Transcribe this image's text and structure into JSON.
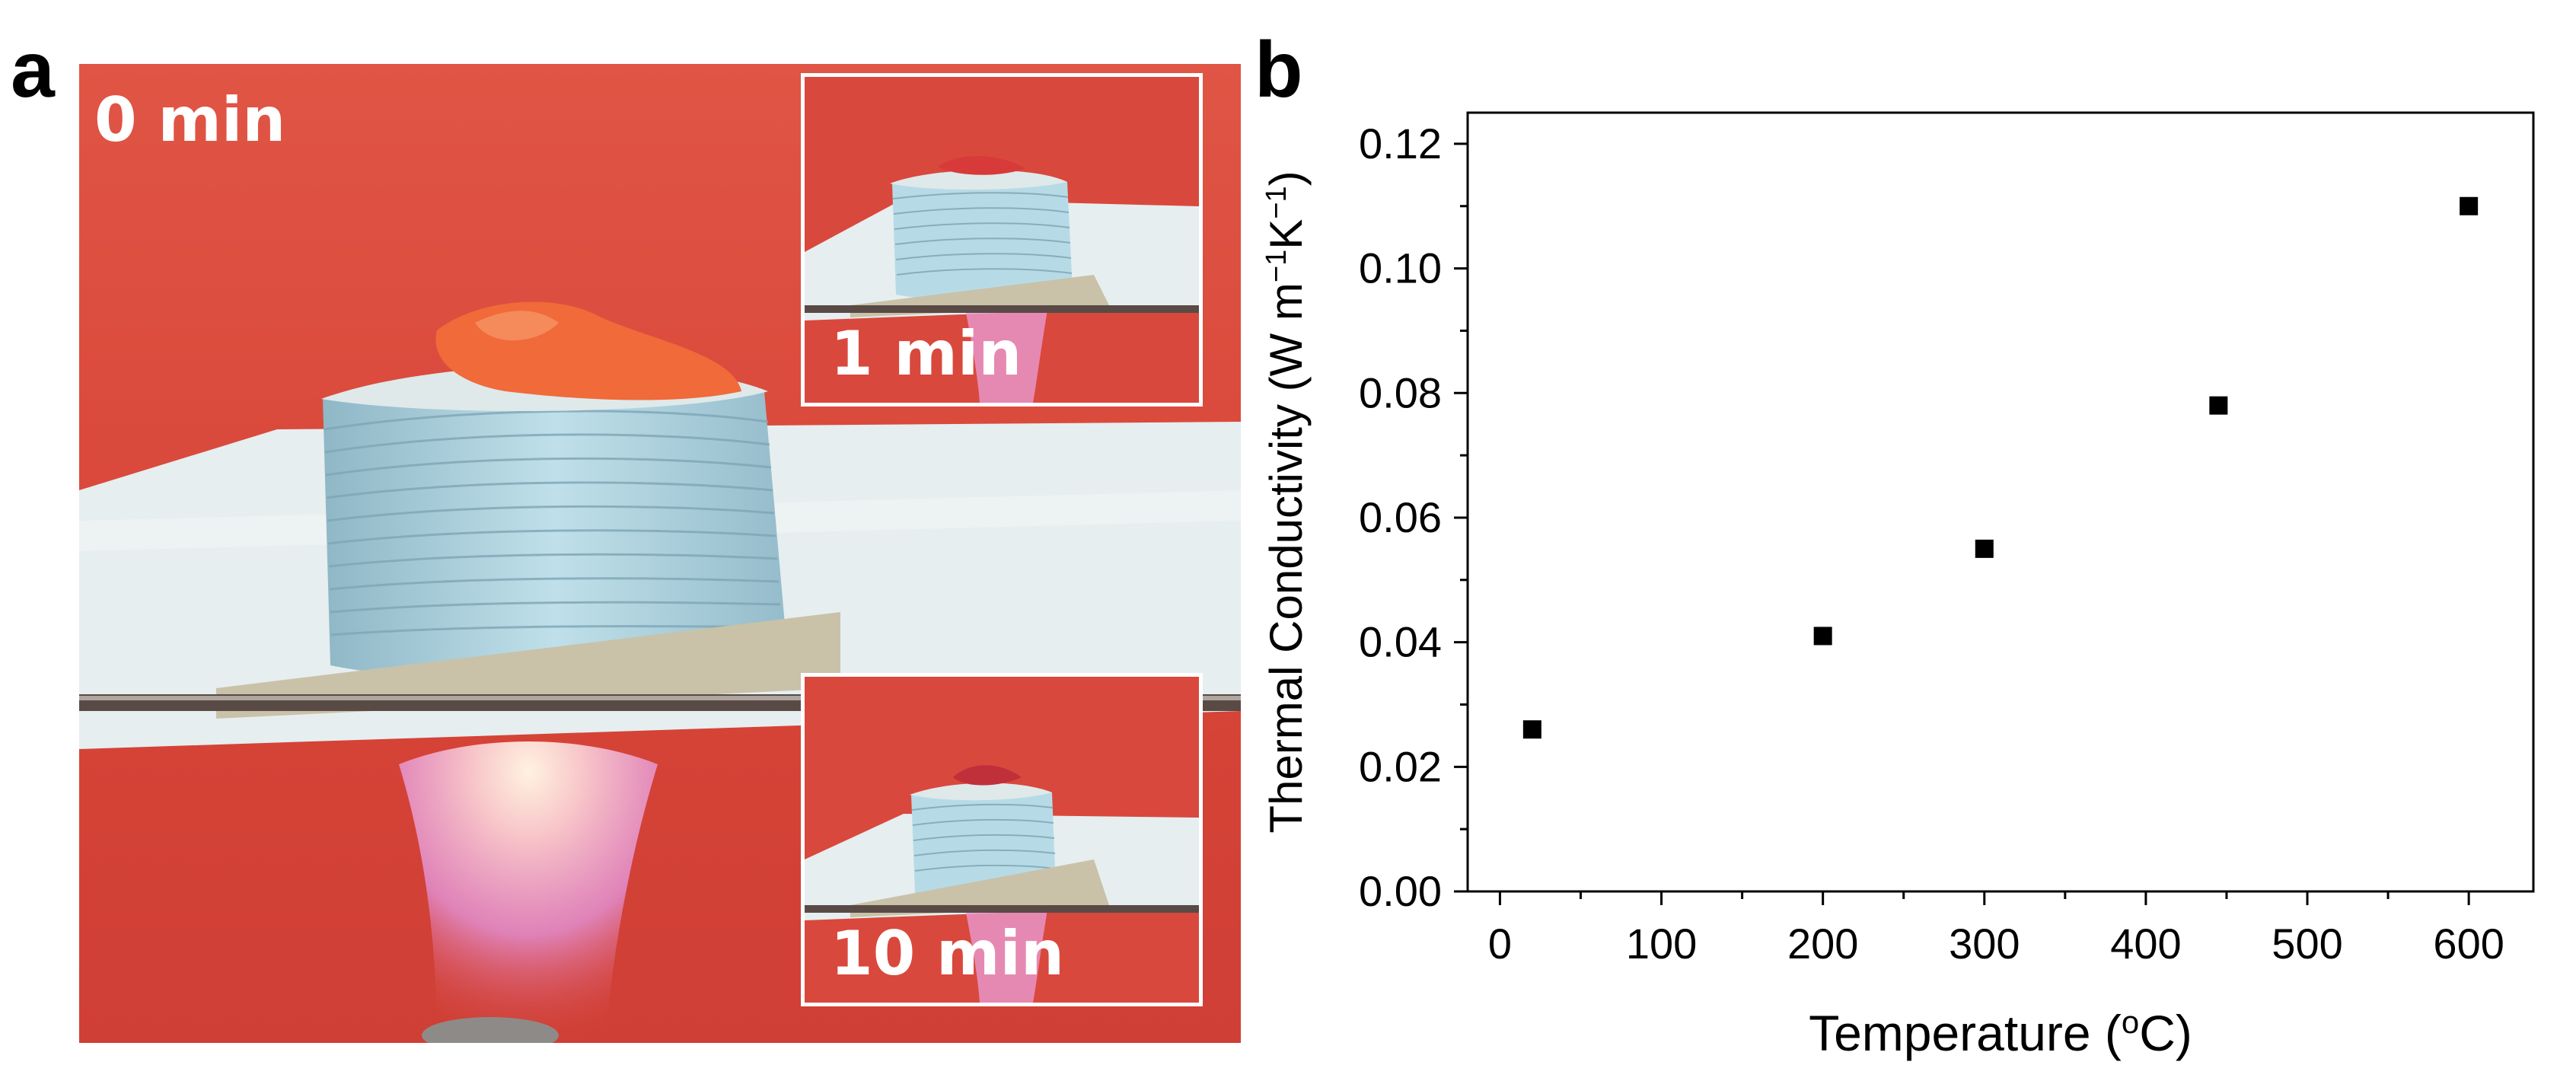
{
  "panels": {
    "a": "a",
    "b": "b"
  },
  "photo": {
    "main_label": "0 min",
    "inset_top_label": "1 min",
    "inset_bottom_label": "10 min"
  },
  "colors": {
    "background_red": "#d9483c",
    "paper_blue": "#b3d6e0",
    "flame_pink": "#e89ad0",
    "sample_orange": "#f06a3a",
    "marker": "#000000"
  },
  "chart_data": {
    "type": "scatter",
    "xlabel_main": "Temperature (",
    "xlabel_sup": "o",
    "xlabel_end": "C)",
    "ylabel_main": "Thermal Conductivity (W m",
    "ylabel_sup1": "−1",
    "ylabel_mid": "K",
    "ylabel_sup2": "−1",
    "ylabel_end": ")",
    "xlim": [
      -20,
      640
    ],
    "ylim": [
      0,
      0.125
    ],
    "xticks": [
      0,
      100,
      200,
      300,
      400,
      500,
      600
    ],
    "xtick_labels": [
      "0",
      "100",
      "200",
      "300",
      "400",
      "500",
      "600"
    ],
    "yticks": [
      0,
      0.02,
      0.04,
      0.06,
      0.08,
      0.1,
      0.12
    ],
    "ytick_labels": [
      "0.00",
      "0.02",
      "0.04",
      "0.06",
      "0.08",
      "0.10",
      "0.12"
    ],
    "grid": false,
    "marker": "square",
    "x": [
      20,
      200,
      300,
      445,
      600
    ],
    "y": [
      0.026,
      0.041,
      0.055,
      0.078,
      0.11
    ]
  }
}
